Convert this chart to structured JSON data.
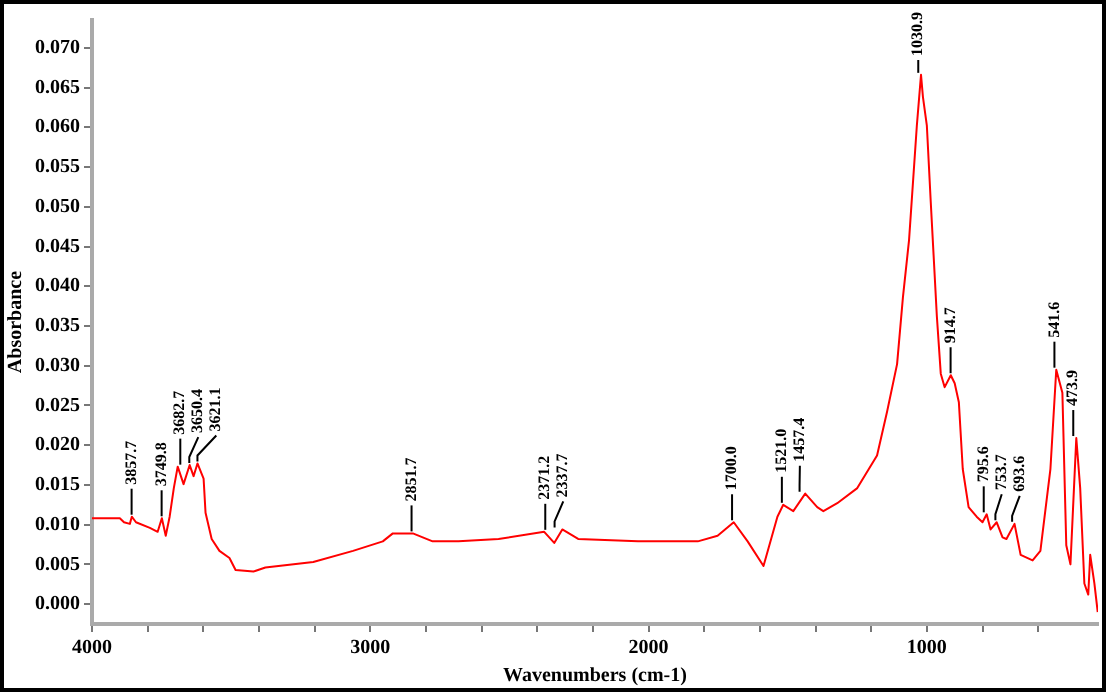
{
  "chart_data": {
    "type": "line",
    "xlabel": "Wavenumbers (cm-1)",
    "ylabel": "Absorbance",
    "xlim": [
      4000,
      385
    ],
    "ylim": [
      -0.0025,
      0.0735
    ],
    "xticks": [
      4000,
      {
        "value": 3800,
        "label": null
      },
      {
        "value": 3600,
        "label": null
      },
      {
        "value": 3400,
        "label": null
      },
      {
        "value": 3200,
        "label": null
      },
      3000,
      {
        "value": 2800,
        "label": null
      },
      {
        "value": 2600,
        "label": null
      },
      {
        "value": 2400,
        "label": null
      },
      {
        "value": 2200,
        "label": null
      },
      2000,
      {
        "value": 1800,
        "label": null
      },
      {
        "value": 1600,
        "label": null
      },
      {
        "value": 1400,
        "label": null
      },
      {
        "value": 1200,
        "label": null
      },
      1000,
      {
        "value": 800,
        "label": null
      },
      {
        "value": 600,
        "label": null
      }
    ],
    "yticks": [
      {
        "value": 0,
        "label": "0.000"
      },
      {
        "value": 0.005,
        "label": "0.005"
      },
      {
        "value": 0.01,
        "label": "0.010"
      },
      {
        "value": 0.015,
        "label": "0.015"
      },
      {
        "value": 0.02,
        "label": "0.020"
      },
      {
        "value": 0.025,
        "label": "0.025"
      },
      {
        "value": 0.03,
        "label": "0.030"
      },
      {
        "value": 0.035,
        "label": "0.035"
      },
      {
        "value": 0.04,
        "label": "0.040"
      },
      {
        "value": 0.045,
        "label": "0.045"
      },
      {
        "value": 0.05,
        "label": "0.050"
      },
      {
        "value": 0.055,
        "label": "0.055"
      },
      {
        "value": 0.06,
        "label": "0.060"
      },
      {
        "value": 0.065,
        "label": "0.065"
      },
      {
        "value": 0.07,
        "label": "0.070"
      }
    ],
    "grid": false,
    "legend": false,
    "marker": "none",
    "line_style": "solid",
    "series": [
      {
        "color": "#ff0000",
        "x": [
          4000,
          3900,
          3885,
          3864,
          3857,
          3842,
          3792,
          3764,
          3749,
          3735,
          3721,
          3706,
          3692,
          3671,
          3649,
          3635,
          3621,
          3599,
          3592,
          3570,
          3542,
          3506,
          3484,
          3420,
          3377,
          3205,
          3062,
          2955,
          2919,
          2847,
          2776,
          2683,
          2539,
          2375,
          2339,
          2310,
          2253,
          2038,
          1823,
          1752,
          1694,
          1644,
          1587,
          1537,
          1516,
          1480,
          1437,
          1394,
          1372,
          1322,
          1250,
          1179,
          1143,
          1107,
          1086,
          1064,
          1036,
          1021,
          1014,
          1000,
          986,
          964,
          950,
          936,
          914,
          900,
          885,
          871,
          850,
          821,
          800,
          785,
          771,
          749,
          728,
          714,
          685,
          663,
          620,
          592,
          556,
          535,
          513,
          499,
          484,
          463,
          449,
          434,
          420,
          413,
          398,
          386
        ],
        "values": [
          0.0108,
          0.0108,
          0.0103,
          0.0101,
          0.011,
          0.0103,
          0.0096,
          0.0091,
          0.0108,
          0.0086,
          0.011,
          0.0146,
          0.0173,
          0.0151,
          0.0175,
          0.0161,
          0.0177,
          0.0158,
          0.0115,
          0.0082,
          0.0067,
          0.0058,
          0.0043,
          0.0041,
          0.0046,
          0.0053,
          0.0067,
          0.0079,
          0.0089,
          0.0089,
          0.0079,
          0.0079,
          0.0082,
          0.0091,
          0.0077,
          0.0094,
          0.0082,
          0.0079,
          0.0079,
          0.0086,
          0.0103,
          0.0079,
          0.0048,
          0.011,
          0.0125,
          0.0117,
          0.0139,
          0.0122,
          0.0117,
          0.0127,
          0.0146,
          0.0187,
          0.0242,
          0.0302,
          0.0386,
          0.0458,
          0.0602,
          0.0666,
          0.0638,
          0.0602,
          0.0506,
          0.0362,
          0.029,
          0.0273,
          0.0288,
          0.0278,
          0.0254,
          0.017,
          0.0122,
          0.011,
          0.0103,
          0.0113,
          0.0094,
          0.0103,
          0.0084,
          0.0082,
          0.0101,
          0.0062,
          0.0055,
          0.0067,
          0.017,
          0.0295,
          0.0266,
          0.0074,
          0.005,
          0.0209,
          0.0146,
          0.0026,
          0.0012,
          0.0062,
          0.0026,
          -0.001
        ]
      }
    ],
    "annotations": [
      {
        "text": "3857.7",
        "x": 3857.7,
        "y": 0.011
      },
      {
        "text": "3749.8",
        "x": 3749.8,
        "y": 0.0108
      },
      {
        "text": "3682.7",
        "x": 3682.7,
        "y": 0.0173
      },
      {
        "text": "3650.4",
        "x": 3650.4,
        "y": 0.0175
      },
      {
        "text": "3621.1",
        "x": 3621.1,
        "y": 0.0177
      },
      {
        "text": "2851.7",
        "x": 2851.7,
        "y": 0.0089
      },
      {
        "text": "2371.2",
        "x": 2371.2,
        "y": 0.0091
      },
      {
        "text": "2337.7",
        "x": 2337.7,
        "y": 0.0094
      },
      {
        "text": "1700.0",
        "x": 1700.0,
        "y": 0.0103
      },
      {
        "text": "1521.0",
        "x": 1521.0,
        "y": 0.0125
      },
      {
        "text": "1457.4",
        "x": 1457.4,
        "y": 0.0139
      },
      {
        "text": "1030.9",
        "x": 1030.9,
        "y": 0.0666
      },
      {
        "text": "914.7",
        "x": 914.7,
        "y": 0.0288
      },
      {
        "text": "795.6",
        "x": 795.6,
        "y": 0.0113
      },
      {
        "text": "753.7",
        "x": 753.7,
        "y": 0.0103
      },
      {
        "text": "693.6",
        "x": 693.6,
        "y": 0.0101
      },
      {
        "text": "541.6",
        "x": 541.6,
        "y": 0.0295
      },
      {
        "text": "473.9",
        "x": 473.9,
        "y": 0.0209
      }
    ]
  }
}
